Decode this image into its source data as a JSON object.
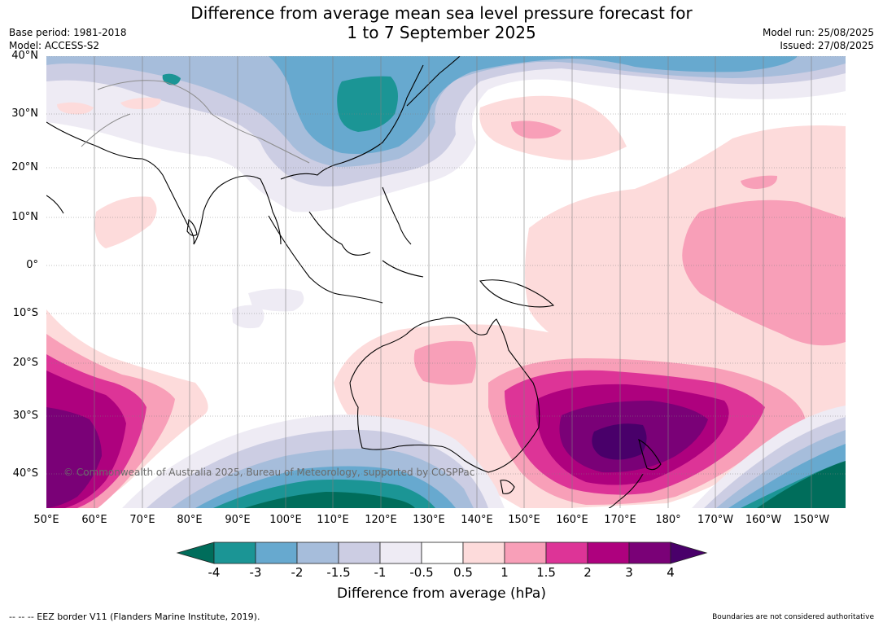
{
  "header": {
    "title_line1": "Difference from average mean sea level pressure forecast for",
    "title_line2": "1 to 7 September 2025",
    "base_period": "Base period: 1981-2018",
    "model": "Model: ACCESS-S2",
    "model_run": "Model run: 25/08/2025",
    "issued": "Issued: 27/08/2025"
  },
  "map": {
    "latitude_labels": [
      "40°N",
      "30°N",
      "20°N",
      "10°N",
      "0°",
      "10°S",
      "20°S",
      "30°S",
      "40°S"
    ],
    "longitude_labels": [
      "50°E",
      "60°E",
      "70°E",
      "80°E",
      "90°E",
      "100°E",
      "110°E",
      "120°E",
      "130°E",
      "140°E",
      "150°E",
      "160°E",
      "170°E",
      "180°",
      "170°W",
      "160°W",
      "150°W"
    ],
    "copyright": "© Commonwealth of Australia 2025, Bureau of Meteorology, supported by COSPPac"
  },
  "colorbar": {
    "tick_labels": [
      "-4",
      "-3",
      "-2",
      "-1.5",
      "-1",
      "-0.5",
      "0.5",
      "1",
      "1.5",
      "2",
      "3",
      "4"
    ],
    "label": "Difference from average (hPa)",
    "colors": [
      "#006d5b",
      "#1b9595",
      "#67a9cf",
      "#a6bddb",
      "#cccde3",
      "#eeebf4",
      "#ffffff",
      "#fddbdb",
      "#f89fb8",
      "#dd3497",
      "#ae017e",
      "#7a0177",
      "#49006a"
    ]
  },
  "footer": {
    "eez_note": "--  --  -- EEZ border V11 (Flanders Marine Institute, 2019).",
    "boundaries_note": "Boundaries are not considered authoritative"
  }
}
